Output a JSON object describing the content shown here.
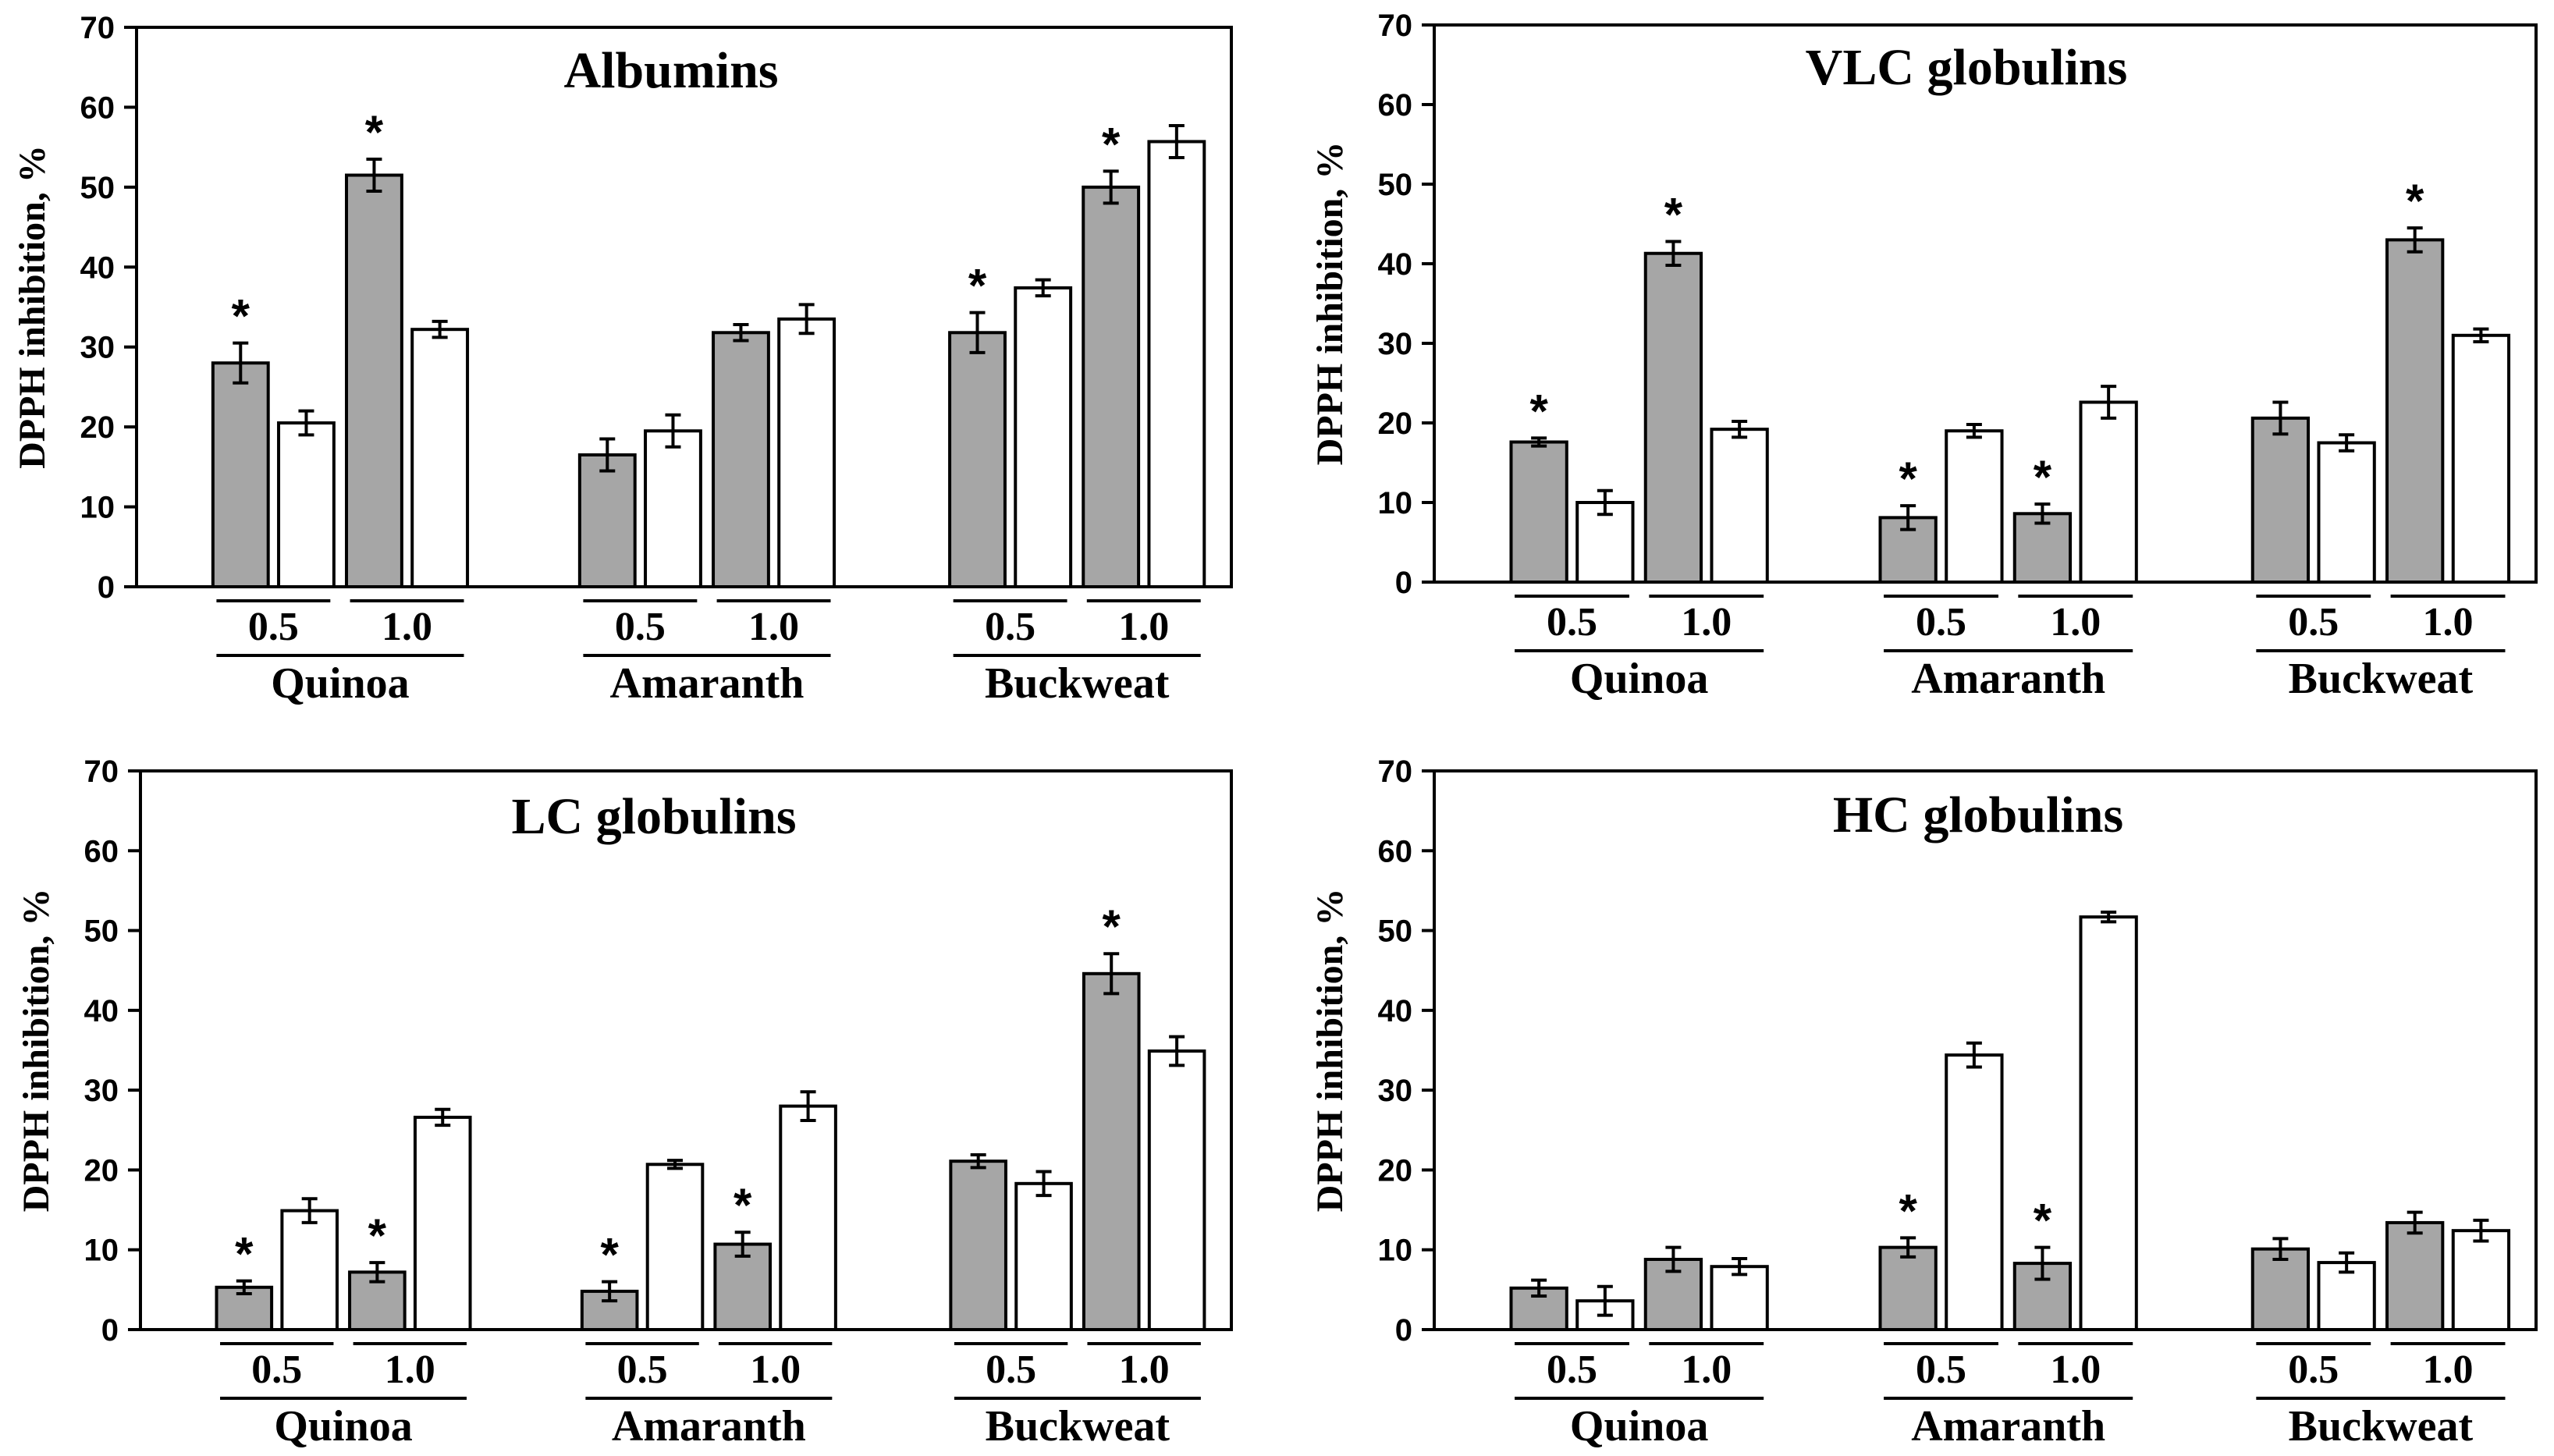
{
  "chart_data": [
    {
      "type": "bar",
      "title": "Albumins",
      "ylabel": "DPPH inhibition, %",
      "ylim": [
        0,
        70
      ],
      "yticks": [
        "0",
        "10",
        "20",
        "30",
        "40",
        "50",
        "60",
        "70"
      ],
      "groups": [
        "Quinoa",
        "Amaranth",
        "Buckweat"
      ],
      "doses": [
        "0.5",
        "1.0"
      ],
      "colors": {
        "filled": "#a6a6a6",
        "open": "#ffffff"
      },
      "series": [
        {
          "name": "filled",
          "values": [
            28.0,
            51.5,
            16.5,
            31.8,
            31.8,
            50.0
          ],
          "errors": [
            2.5,
            2.0,
            2.0,
            1.0,
            2.5,
            2.0
          ]
        },
        {
          "name": "open",
          "values": [
            20.5,
            32.2,
            19.5,
            33.5,
            37.4,
            55.7
          ],
          "errors": [
            1.5,
            1.0,
            2.0,
            1.8,
            1.0,
            2.0
          ]
        }
      ],
      "star_mark": "*",
      "stars": [
        {
          "category": 0,
          "series": 0
        },
        {
          "category": 1,
          "series": 0
        },
        {
          "category": 4,
          "series": 0
        },
        {
          "category": 5,
          "series": 0
        }
      ]
    },
    {
      "type": "bar",
      "title": "VLC globulins",
      "ylabel": "DPPH inhibition, %",
      "ylim": [
        0,
        70
      ],
      "yticks": [
        "0",
        "10",
        "20",
        "30",
        "40",
        "50",
        "60",
        "70"
      ],
      "groups": [
        "Quinoa",
        "Amaranth",
        "Buckweat"
      ],
      "doses": [
        "0.5",
        "1.0"
      ],
      "colors": {
        "filled": "#a6a6a6",
        "open": "#ffffff"
      },
      "series": [
        {
          "name": "filled",
          "values": [
            17.6,
            41.3,
            8.1,
            8.6,
            20.6,
            43.0
          ],
          "errors": [
            0.5,
            1.5,
            1.5,
            1.2,
            2.0,
            1.5
          ]
        },
        {
          "name": "open",
          "values": [
            10.0,
            19.2,
            19.0,
            22.6,
            17.5,
            31.0
          ],
          "errors": [
            1.5,
            1.0,
            0.8,
            2.0,
            1.0,
            0.8
          ]
        }
      ],
      "star_mark": "*",
      "stars": [
        {
          "category": 0,
          "series": 0
        },
        {
          "category": 1,
          "series": 0
        },
        {
          "category": 2,
          "series": 0
        },
        {
          "category": 3,
          "series": 0
        },
        {
          "category": 5,
          "series": 0
        }
      ]
    },
    {
      "type": "bar",
      "title": "LC globulins",
      "ylabel": "DPPH inhibition, %",
      "ylim": [
        0,
        70
      ],
      "yticks": [
        "0",
        "10",
        "20",
        "30",
        "40",
        "50",
        "60",
        "70"
      ],
      "groups": [
        "Quinoa",
        "Amaranth",
        "Buckweat"
      ],
      "doses": [
        "0.5",
        "1.0"
      ],
      "colors": {
        "filled": "#a6a6a6",
        "open": "#ffffff"
      },
      "series": [
        {
          "name": "filled",
          "values": [
            5.3,
            7.2,
            4.8,
            10.7,
            21.1,
            44.6
          ],
          "errors": [
            0.8,
            1.2,
            1.2,
            1.5,
            0.8,
            2.5
          ]
        },
        {
          "name": "open",
          "values": [
            14.9,
            26.6,
            20.7,
            28.0,
            18.3,
            34.9
          ],
          "errors": [
            1.5,
            1.0,
            0.5,
            1.8,
            1.5,
            1.8
          ]
        }
      ],
      "star_mark": "*",
      "stars": [
        {
          "category": 0,
          "series": 0
        },
        {
          "category": 1,
          "series": 0
        },
        {
          "category": 2,
          "series": 0
        },
        {
          "category": 3,
          "series": 0
        },
        {
          "category": 5,
          "series": 0
        }
      ]
    },
    {
      "type": "bar",
      "title": "HC globulins",
      "ylabel": "DPPH inhibition, %",
      "ylim": [
        0,
        70
      ],
      "yticks": [
        "0",
        "10",
        "20",
        "30",
        "40",
        "50",
        "60",
        "70"
      ],
      "groups": [
        "Quinoa",
        "Amaranth",
        "Buckweat"
      ],
      "doses": [
        "0.5",
        "1.0"
      ],
      "colors": {
        "filled": "#a6a6a6",
        "open": "#ffffff"
      },
      "series": [
        {
          "name": "filled",
          "values": [
            5.2,
            8.8,
            10.3,
            8.3,
            10.1,
            13.4
          ],
          "errors": [
            1.0,
            1.5,
            1.2,
            2.0,
            1.3,
            1.3
          ]
        },
        {
          "name": "open",
          "values": [
            3.6,
            7.9,
            34.4,
            51.7,
            8.4,
            12.4
          ],
          "errors": [
            1.8,
            1.0,
            1.5,
            0.6,
            1.2,
            1.3
          ]
        }
      ],
      "star_mark": "*",
      "stars": [
        {
          "category": 2,
          "series": 0
        },
        {
          "category": 3,
          "series": 0
        }
      ]
    }
  ]
}
